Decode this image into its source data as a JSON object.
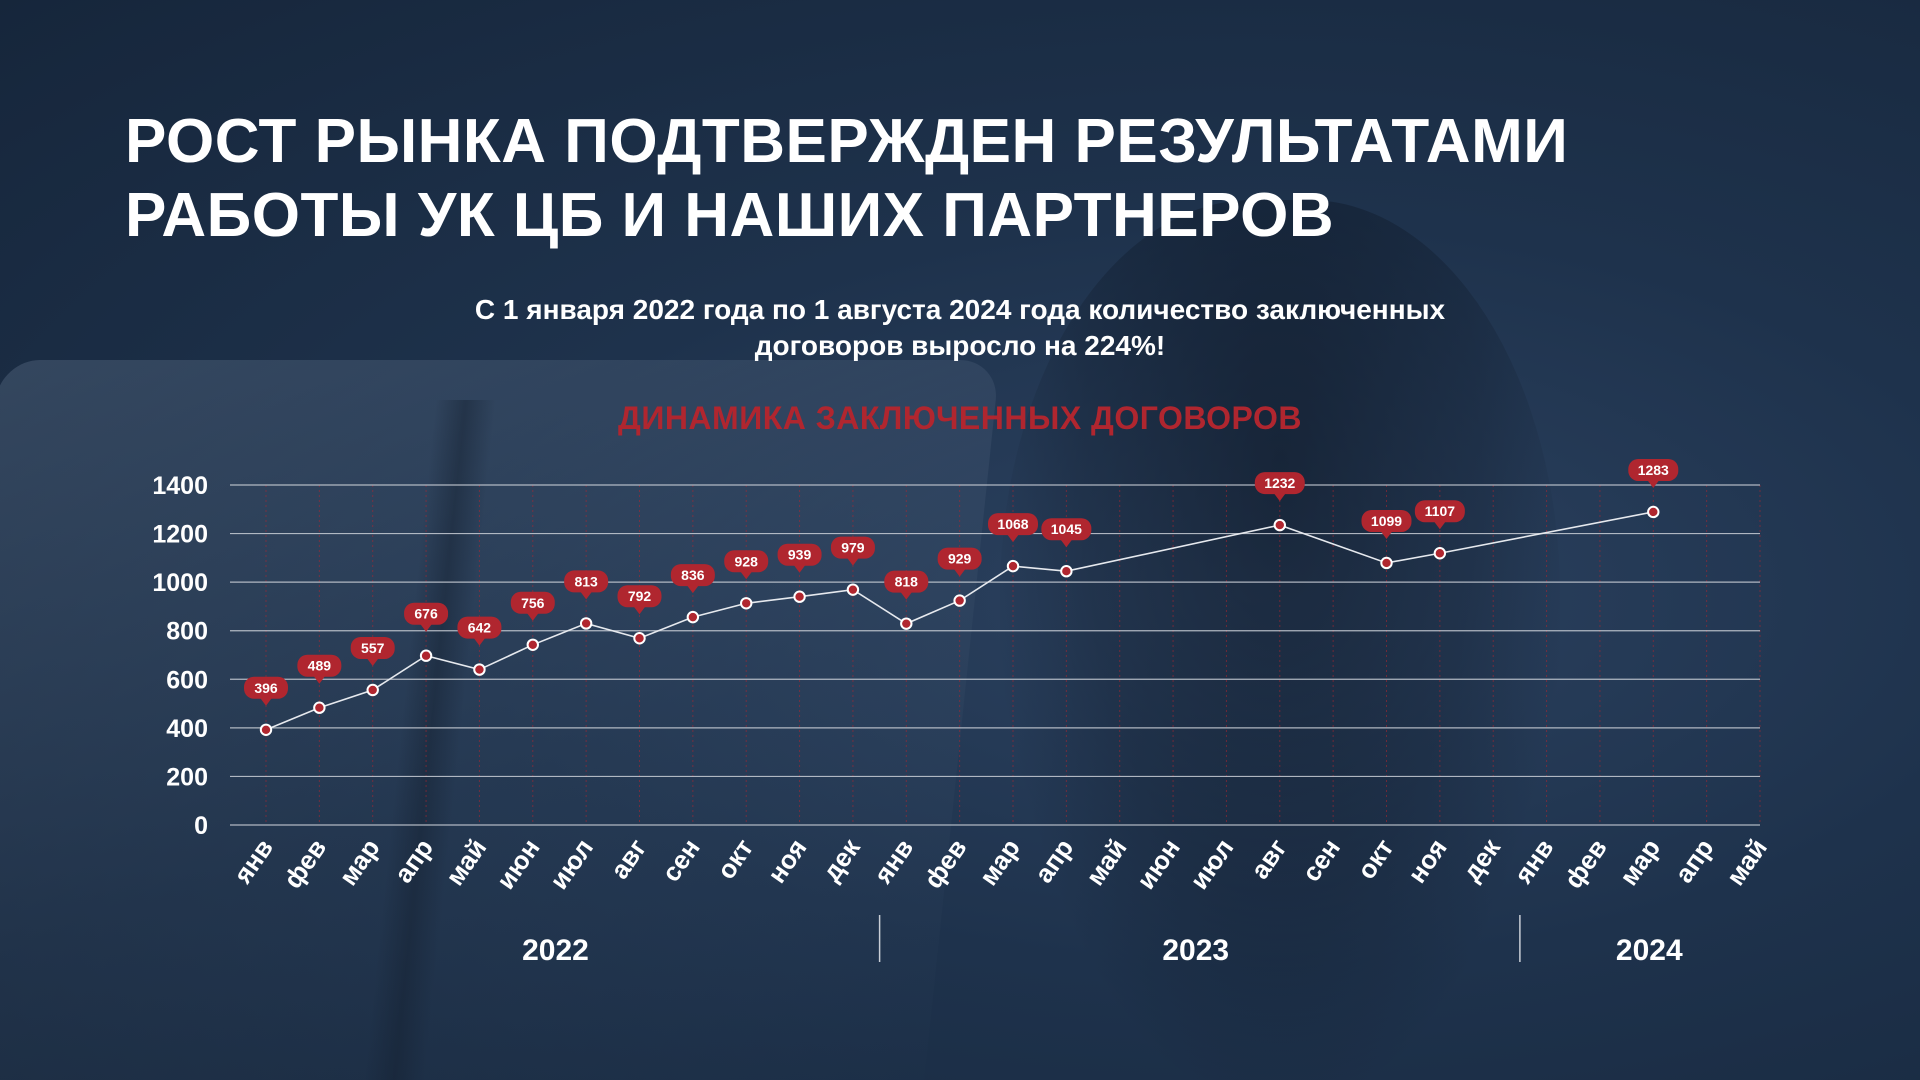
{
  "header": {
    "title_line1": "РОСТ РЫНКА ПОДТВЕРЖДЕН РЕЗУЛЬТАТАМИ",
    "title_line2": "РАБОТЫ УК ЦБ И НАШИХ ПАРТНЕРОВ",
    "subtitle_line1": "С 1 января 2022 года по 1  августа 2024 года количество заключенных",
    "subtitle_line2": "договоров выросло на  224%!"
  },
  "colors": {
    "accent": "#b0262f",
    "line": "#e6e9ee",
    "grid": "#c9ced6",
    "text": "#ffffff"
  },
  "chart_data": {
    "type": "line",
    "title": "ДИНАМИКА ЗАКЛЮЧЕННЫХ ДОГОВОРОВ",
    "ylim": [
      0,
      1400
    ],
    "yticks": [
      0,
      200,
      400,
      600,
      800,
      1000,
      1200,
      1400
    ],
    "grid": true,
    "categories": [
      "янв",
      "фев",
      "мар",
      "апр",
      "май",
      "июн",
      "июл",
      "авг",
      "сен",
      "окт",
      "ноя",
      "дек",
      "янв",
      "фев",
      "мар",
      "апр",
      "май",
      "июн",
      "июл",
      "авг",
      "сен",
      "окт",
      "ноя",
      "дек",
      "янв",
      "фев",
      "мар",
      "апр",
      "май"
    ],
    "year_groups": [
      {
        "label": "2022",
        "start": 0,
        "end": 11
      },
      {
        "label": "2023",
        "start": 12,
        "end": 23
      },
      {
        "label": "2024",
        "start": 24,
        "end": 28
      }
    ],
    "series": [
      {
        "values": [
          396,
          489,
          557,
          676,
          642,
          756,
          813,
          792,
          836,
          928,
          939,
          979,
          818,
          929,
          1068,
          1045,
          null,
          null,
          null,
          1232,
          null,
          1099,
          1107,
          null,
          null,
          null,
          1283,
          null,
          null
        ],
        "point_positions": [
          392,
          483,
          556,
          697,
          640,
          742,
          830,
          769,
          856,
          913,
          940,
          969,
          829,
          924,
          1066,
          1045,
          null,
          null,
          null,
          1235,
          null,
          1079,
          1119,
          null,
          null,
          null,
          1289,
          null,
          null
        ]
      }
    ]
  }
}
